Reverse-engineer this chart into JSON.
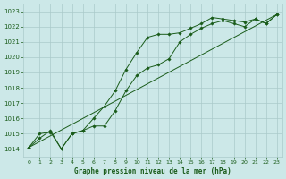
{
  "title": "Graphe pression niveau de la mer (hPa)",
  "bg_color": "#cce8e8",
  "grid_color": "#aacaca",
  "line_color": "#1a5c1a",
  "marker_color": "#1a5c1a",
  "xlim": [
    -0.5,
    23.5
  ],
  "ylim": [
    1013.5,
    1023.5
  ],
  "yticks": [
    1014,
    1015,
    1016,
    1017,
    1018,
    1019,
    1020,
    1021,
    1022,
    1023
  ],
  "xticks": [
    0,
    1,
    2,
    3,
    4,
    5,
    6,
    7,
    8,
    9,
    10,
    11,
    12,
    13,
    14,
    15,
    16,
    17,
    18,
    19,
    20,
    21,
    22,
    23
  ],
  "series": [
    {
      "comment": "upper line with markers - rises steeply from h8 onward",
      "x": [
        0,
        1,
        2,
        3,
        4,
        5,
        6,
        7,
        8,
        9,
        10,
        11,
        12,
        13,
        14,
        15,
        16,
        17,
        18,
        19,
        20,
        21,
        22,
        23
      ],
      "y": [
        1014.1,
        1015.0,
        1015.1,
        1014.0,
        1015.0,
        1015.2,
        1016.0,
        1016.8,
        1017.8,
        1019.2,
        1020.3,
        1021.3,
        1021.5,
        1021.5,
        1021.6,
        1021.9,
        1022.2,
        1022.6,
        1022.5,
        1022.4,
        1022.3,
        1022.5,
        1022.2,
        1022.8
      ]
    },
    {
      "comment": "lower line with markers - has dip at h3 to 1014, slower rise",
      "x": [
        0,
        1,
        2,
        3,
        4,
        5,
        6,
        7,
        8,
        9,
        10,
        11,
        12,
        13,
        14,
        15,
        16,
        17,
        18,
        19,
        20,
        21,
        22,
        23
      ],
      "y": [
        1014.1,
        1014.7,
        1015.2,
        1014.0,
        1015.0,
        1015.2,
        1015.5,
        1015.5,
        1016.5,
        1017.8,
        1018.8,
        1019.3,
        1019.5,
        1019.9,
        1021.0,
        1021.5,
        1021.9,
        1022.2,
        1022.4,
        1022.2,
        1022.0,
        1022.5,
        1022.2,
        1022.8
      ]
    },
    {
      "comment": "smooth diagonal reference line - nearly straight from 1014 to 1023",
      "x": [
        0,
        23
      ],
      "y": [
        1014.1,
        1022.8
      ]
    }
  ]
}
